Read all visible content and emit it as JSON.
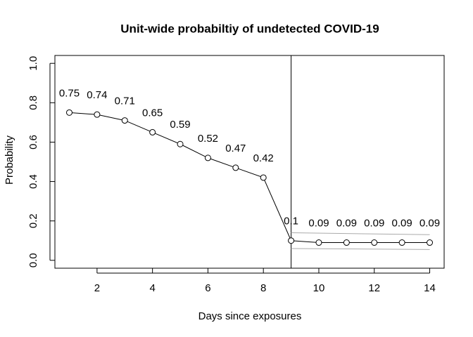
{
  "chart_data": {
    "type": "line",
    "title": "Unit-wide probabiltiy of undetected COVID-19",
    "x_label": "Days since exposures",
    "y_label": "Probability",
    "x": [
      1,
      2,
      3,
      4,
      5,
      6,
      7,
      8,
      9,
      10,
      11,
      12,
      13,
      14
    ],
    "series": [
      {
        "color": "#000000",
        "values": [
          0.75,
          0.74,
          0.71,
          0.65,
          0.59,
          0.52,
          0.47,
          0.42,
          0.1,
          0.09,
          0.09,
          0.09,
          0.09,
          0.09
        ]
      }
    ],
    "bounds": {
      "color": "#aaaaaa",
      "x": [
        9,
        14
      ],
      "upper": [
        0.14,
        0.13
      ],
      "lower": [
        0.06,
        0.055
      ]
    },
    "vline": 9,
    "xlim": [
      0.48,
      14.52
    ],
    "ylim": [
      -0.04,
      1.04
    ],
    "xticks": [
      2,
      4,
      6,
      8,
      10,
      12,
      14
    ],
    "yticks": [
      {
        "value": 0,
        "label": "0.0"
      },
      {
        "value": 0.2,
        "label": "0.2"
      },
      {
        "value": 0.4,
        "label": "0.4"
      },
      {
        "value": 0.6,
        "label": "0.6"
      },
      {
        "value": 0.8,
        "label": "0.8"
      },
      {
        "value": 1,
        "label": "1.0"
      }
    ]
  }
}
